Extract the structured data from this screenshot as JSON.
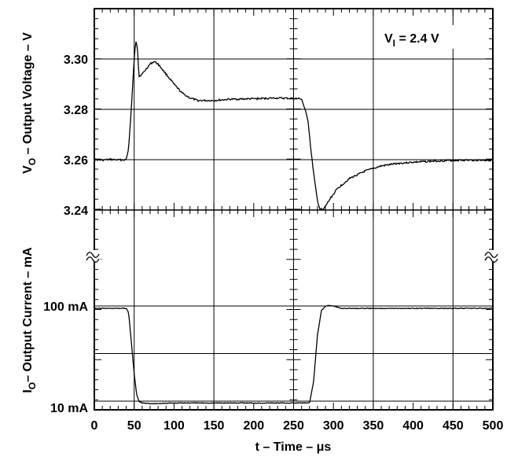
{
  "chart_data": {
    "type": "line",
    "x_label": {
      "main": "t – Time – ",
      "unit": "μs"
    },
    "x_ticks": [
      "0",
      "50",
      "100",
      "150",
      "200",
      "250",
      "300",
      "350",
      "400",
      "450",
      "500"
    ],
    "xlim": [
      0,
      500
    ],
    "grid": true,
    "annotation": {
      "prefix": "V",
      "sub": "I",
      "suffix": " = 2.4 V"
    },
    "voltage_panel": {
      "y_label": {
        "pre": "V",
        "sub": "O",
        "post": " – Output Voltage – V"
      },
      "y_ticks": [
        "3.30",
        "3.28",
        "3.26",
        "3.24"
      ],
      "ylim": [
        3.24,
        3.32
      ],
      "x": [
        0,
        10,
        20,
        30,
        40,
        43,
        46,
        50,
        52,
        54,
        56,
        60,
        65,
        70,
        75,
        80,
        90,
        100,
        110,
        120,
        130,
        140,
        150,
        170,
        200,
        230,
        260,
        268,
        272,
        276,
        280,
        283,
        287,
        292,
        297,
        305,
        320,
        340,
        360,
        380,
        400,
        430,
        460,
        500
      ],
      "values": [
        3.26,
        3.2598,
        3.2601,
        3.2599,
        3.26,
        3.2645,
        3.278,
        3.3,
        3.3075,
        3.305,
        3.293,
        3.294,
        3.296,
        3.298,
        3.299,
        3.298,
        3.294,
        3.29,
        3.2865,
        3.2845,
        3.2835,
        3.2835,
        3.2835,
        3.284,
        3.2842,
        3.2845,
        3.2842,
        3.276,
        3.263,
        3.2525,
        3.2435,
        3.2405,
        3.24,
        3.2425,
        3.245,
        3.2485,
        3.2525,
        3.2555,
        3.2575,
        3.2585,
        3.259,
        3.2595,
        3.2598,
        3.2598
      ]
    },
    "current_panel": {
      "y_label": {
        "pre": "I",
        "sub": "O",
        "post": "– Output Current – mA"
      },
      "y_ticks": [
        "100 mA",
        "10 mA"
      ],
      "ylim": [
        10,
        100
      ],
      "x": [
        0,
        20,
        40,
        43,
        46,
        50,
        53,
        56,
        60,
        70,
        80,
        100,
        150,
        200,
        250,
        270,
        275,
        280,
        285,
        290,
        295,
        300,
        310,
        330,
        360,
        400,
        450,
        500
      ],
      "values": [
        100,
        100,
        100,
        96,
        72,
        38,
        19,
        12,
        10.5,
        10,
        10,
        10.5,
        10.5,
        10.5,
        10.5,
        10.5,
        30,
        75,
        98,
        102,
        103,
        102,
        100,
        100,
        100,
        100,
        100,
        100
      ]
    }
  }
}
